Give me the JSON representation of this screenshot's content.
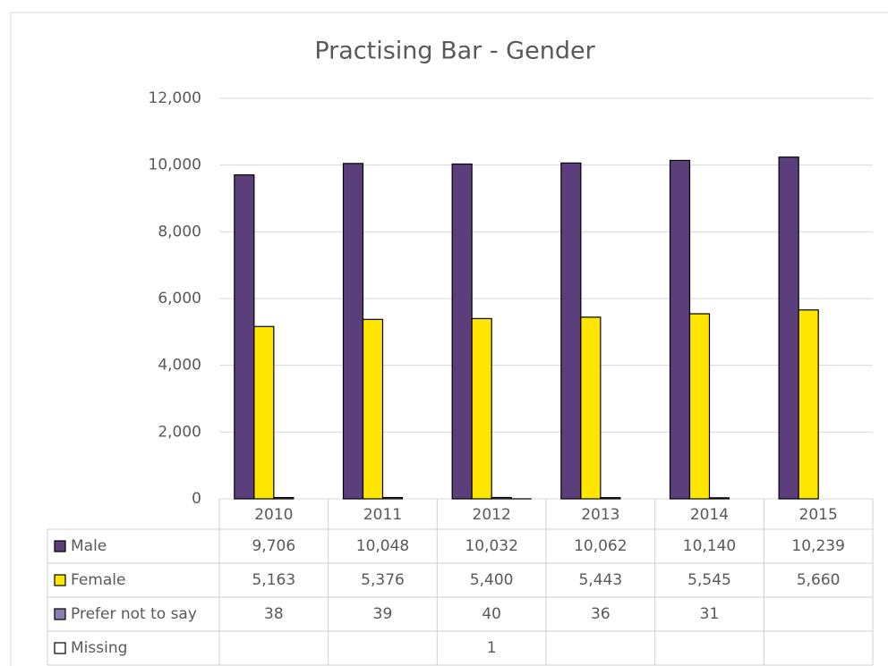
{
  "chart_data": {
    "type": "bar",
    "title": "Practising Bar - Gender",
    "categories": [
      "2010",
      "2011",
      "2012",
      "2013",
      "2014",
      "2015"
    ],
    "series": [
      {
        "name": "Male",
        "color": "#5b3f7c",
        "values": [
          9706,
          10048,
          10032,
          10062,
          10140,
          10239
        ],
        "value_labels": [
          "9,706",
          "10,048",
          "10,032",
          "10,062",
          "10,140",
          "10,239"
        ]
      },
      {
        "name": "Female",
        "color": "#ffe500",
        "values": [
          5163,
          5376,
          5400,
          5443,
          5545,
          5660
        ],
        "value_labels": [
          "5,163",
          "5,376",
          "5,400",
          "5,443",
          "5,545",
          "5,660"
        ]
      },
      {
        "name": "Prefer not to say",
        "color": "#8c7eb3",
        "values": [
          38,
          39,
          40,
          36,
          31,
          null
        ]
      },
      {
        "name": "Missing",
        "color": "#ffffff",
        "values": [
          null,
          null,
          1,
          null,
          null,
          null
        ]
      }
    ],
    "ylim": [
      0,
      12000
    ],
    "yticks": [
      0,
      {
        "value": 2000,
        "label": "2,000"
      },
      {
        "value": 4000,
        "label": "4,000"
      },
      {
        "value": 6000,
        "label": "6,000"
      },
      {
        "value": 8000,
        "label": "8,000"
      },
      {
        "value": 10000,
        "label": "10,000"
      },
      {
        "value": 12000,
        "label": "12,000"
      }
    ],
    "grid": true
  }
}
